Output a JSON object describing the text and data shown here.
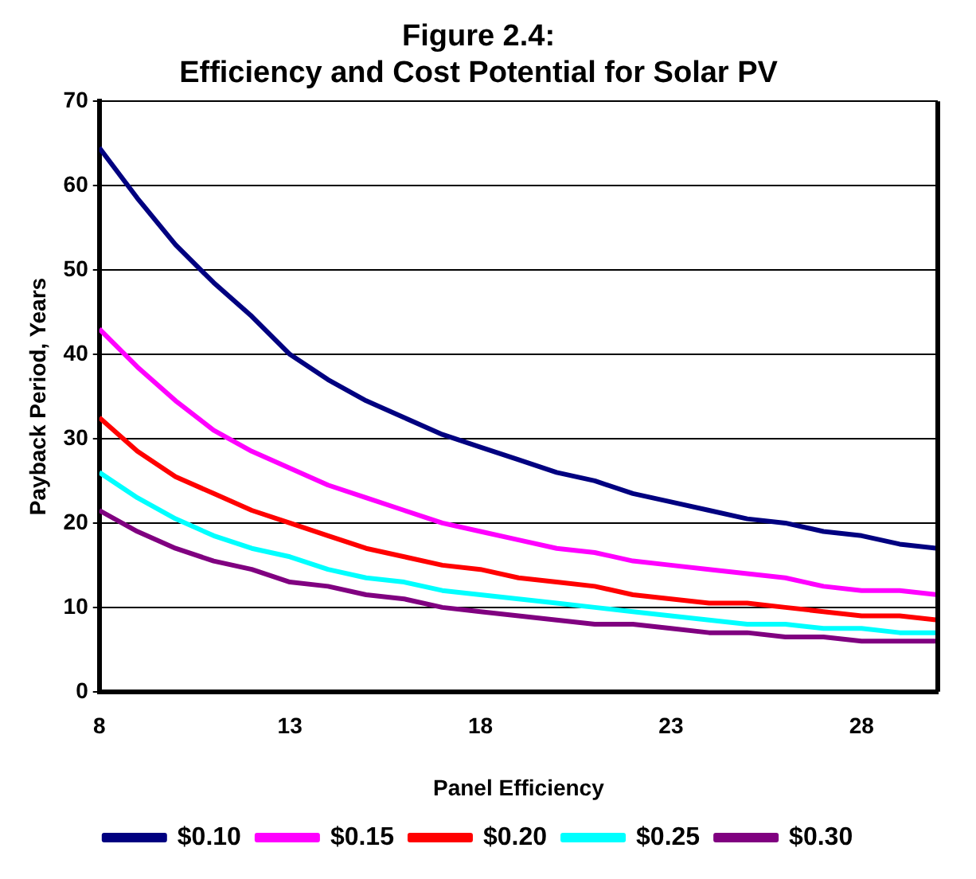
{
  "chart_data": {
    "type": "line",
    "title": "Figure 2.4:  Efficiency and Cost Potential for Solar PV",
    "xlabel": "Panel Efficiency",
    "ylabel": "Payback Period, Years",
    "x": [
      8,
      9,
      10,
      11,
      12,
      13,
      14,
      15,
      16,
      17,
      18,
      19,
      20,
      21,
      22,
      23,
      24,
      25,
      26,
      27,
      28,
      29,
      30
    ],
    "xlim": [
      8,
      30
    ],
    "xticks": [
      8,
      13,
      18,
      23,
      28
    ],
    "ylim": [
      0,
      70
    ],
    "yticks": [
      0,
      10,
      20,
      30,
      40,
      50,
      60,
      70
    ],
    "grid": "y",
    "legend": "bottom",
    "marker": "none",
    "line_style": "solid",
    "series": [
      {
        "name": "$0.10",
        "color": "#000080",
        "values": [
          64.5,
          58.5,
          53,
          48.5,
          44.5,
          40,
          37,
          34.5,
          32.5,
          30.5,
          29,
          27.5,
          26,
          25,
          23.5,
          22.5,
          21.5,
          20.5,
          20,
          19,
          18.5,
          17.5,
          17
        ]
      },
      {
        "name": "$0.15",
        "color": "#ff00ff",
        "values": [
          43,
          38.5,
          34.5,
          31,
          28.5,
          26.5,
          24.5,
          23,
          21.5,
          20,
          19,
          18,
          17,
          16.5,
          15.5,
          15,
          14.5,
          14,
          13.5,
          12.5,
          12,
          12,
          11.5
        ]
      },
      {
        "name": "$0.20",
        "color": "#ff0000",
        "values": [
          32.5,
          28.5,
          25.5,
          23.5,
          21.5,
          20,
          18.5,
          17,
          16,
          15,
          14.5,
          13.5,
          13,
          12.5,
          11.5,
          11,
          10.5,
          10.5,
          10,
          9.5,
          9,
          9,
          8.5
        ]
      },
      {
        "name": "$0.25",
        "color": "#00ffff",
        "values": [
          26,
          23,
          20.5,
          18.5,
          17,
          16,
          14.5,
          13.5,
          13,
          12,
          11.5,
          11,
          10.5,
          10,
          9.5,
          9,
          8.5,
          8,
          8,
          7.5,
          7.5,
          7,
          7
        ]
      },
      {
        "name": "$0.30",
        "color": "#800080",
        "values": [
          21.5,
          19,
          17,
          15.5,
          14.5,
          13,
          12.5,
          11.5,
          11,
          10,
          9.5,
          9,
          8.5,
          8,
          8,
          7.5,
          7,
          7,
          6.5,
          6.5,
          6,
          6,
          6
        ]
      }
    ]
  }
}
